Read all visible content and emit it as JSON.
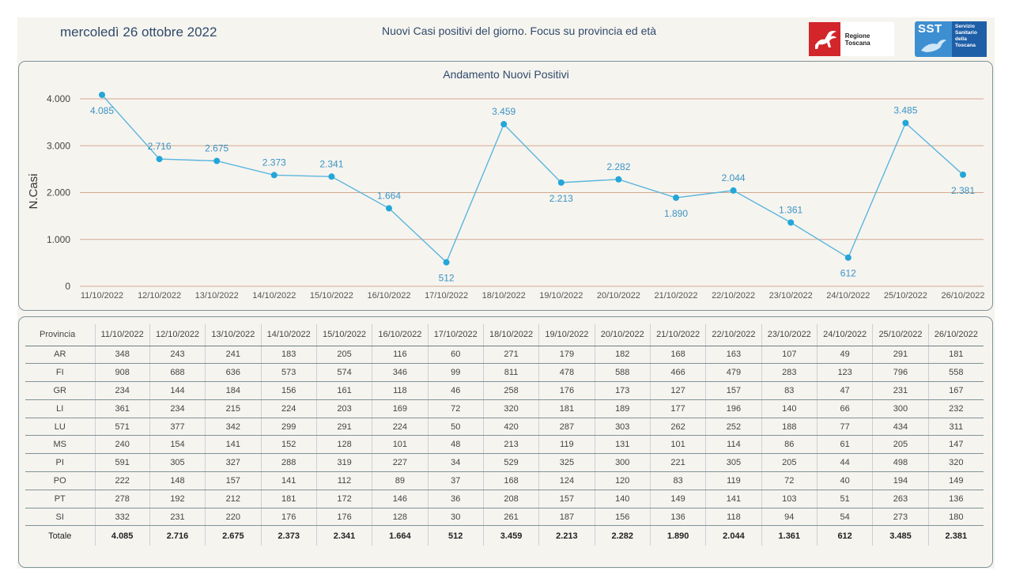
{
  "header": {
    "date": "mercoledì 26 ottobre 2022",
    "title": "Nuovi Casi positivi del giorno. Focus su provincia ed età",
    "logo_regione": "Regione Toscana",
    "logo_sst_mark": "SST",
    "logo_sst_lines": [
      "Servizio",
      "Sanitario",
      "della",
      "Toscana"
    ]
  },
  "colors": {
    "line": "#5bb6de",
    "point": "#23a6d8",
    "label": "#3a94c4",
    "gridline": "#d3a890",
    "navy": "#2f4a6b"
  },
  "chart_data": {
    "type": "line",
    "title": "Andamento Nuovi Positivi",
    "ylabel": "N.Casi",
    "xlabel": "",
    "ylim": [
      0,
      4000
    ],
    "yticks": [
      0,
      1000,
      2000,
      3000,
      4000
    ],
    "ytick_labels": [
      "0",
      "1.000",
      "2.000",
      "3.000",
      "4.000"
    ],
    "grid": true,
    "categories": [
      "11/10/2022",
      "12/10/2022",
      "13/10/2022",
      "14/10/2022",
      "15/10/2022",
      "16/10/2022",
      "17/10/2022",
      "18/10/2022",
      "19/10/2022",
      "20/10/2022",
      "21/10/2022",
      "22/10/2022",
      "23/10/2022",
      "24/10/2022",
      "25/10/2022",
      "26/10/2022"
    ],
    "values": [
      4085,
      2716,
      2675,
      2373,
      2341,
      1664,
      512,
      3459,
      2213,
      2282,
      1890,
      2044,
      1361,
      612,
      3485,
      2381
    ],
    "data_labels": [
      "4.085",
      "2.716",
      "2.675",
      "2.373",
      "2.341",
      "1.664",
      "512",
      "3.459",
      "2.213",
      "2.282",
      "1.890",
      "2.044",
      "1.361",
      "612",
      "3.485",
      "2.381"
    ]
  },
  "table": {
    "header_label": "Provincia",
    "dates": [
      "11/10/2022",
      "12/10/2022",
      "13/10/2022",
      "14/10/2022",
      "15/10/2022",
      "16/10/2022",
      "17/10/2022",
      "18/10/2022",
      "19/10/2022",
      "20/10/2022",
      "21/10/2022",
      "22/10/2022",
      "23/10/2022",
      "24/10/2022",
      "25/10/2022",
      "26/10/2022"
    ],
    "rows": [
      {
        "name": "AR",
        "values": [
          "348",
          "243",
          "241",
          "183",
          "205",
          "116",
          "60",
          "271",
          "179",
          "182",
          "168",
          "163",
          "107",
          "49",
          "291",
          "181"
        ]
      },
      {
        "name": "FI",
        "values": [
          "908",
          "688",
          "636",
          "573",
          "574",
          "346",
          "99",
          "811",
          "478",
          "588",
          "466",
          "479",
          "283",
          "123",
          "796",
          "558"
        ]
      },
      {
        "name": "GR",
        "values": [
          "234",
          "144",
          "184",
          "156",
          "161",
          "118",
          "46",
          "258",
          "176",
          "173",
          "127",
          "157",
          "83",
          "47",
          "231",
          "167"
        ]
      },
      {
        "name": "LI",
        "values": [
          "361",
          "234",
          "215",
          "224",
          "203",
          "169",
          "72",
          "320",
          "181",
          "189",
          "177",
          "196",
          "140",
          "66",
          "300",
          "232"
        ]
      },
      {
        "name": "LU",
        "values": [
          "571",
          "377",
          "342",
          "299",
          "291",
          "224",
          "50",
          "420",
          "287",
          "303",
          "262",
          "252",
          "188",
          "77",
          "434",
          "311"
        ]
      },
      {
        "name": "MS",
        "values": [
          "240",
          "154",
          "141",
          "152",
          "128",
          "101",
          "48",
          "213",
          "119",
          "131",
          "101",
          "114",
          "86",
          "61",
          "205",
          "147"
        ]
      },
      {
        "name": "PI",
        "values": [
          "591",
          "305",
          "327",
          "288",
          "319",
          "227",
          "34",
          "529",
          "325",
          "300",
          "221",
          "305",
          "205",
          "44",
          "498",
          "320"
        ]
      },
      {
        "name": "PO",
        "values": [
          "222",
          "148",
          "157",
          "141",
          "112",
          "89",
          "37",
          "168",
          "124",
          "120",
          "83",
          "119",
          "72",
          "40",
          "194",
          "149"
        ]
      },
      {
        "name": "PT",
        "values": [
          "278",
          "192",
          "212",
          "181",
          "172",
          "146",
          "36",
          "208",
          "157",
          "140",
          "149",
          "141",
          "103",
          "51",
          "263",
          "136"
        ]
      },
      {
        "name": "SI",
        "values": [
          "332",
          "231",
          "220",
          "176",
          "176",
          "128",
          "30",
          "261",
          "187",
          "156",
          "136",
          "118",
          "94",
          "54",
          "273",
          "180"
        ]
      }
    ],
    "total_label": "Totale",
    "totals": [
      "4.085",
      "2.716",
      "2.675",
      "2.373",
      "2.341",
      "1.664",
      "512",
      "3.459",
      "2.213",
      "2.282",
      "1.890",
      "2.044",
      "1.361",
      "612",
      "3.485",
      "2.381"
    ]
  }
}
